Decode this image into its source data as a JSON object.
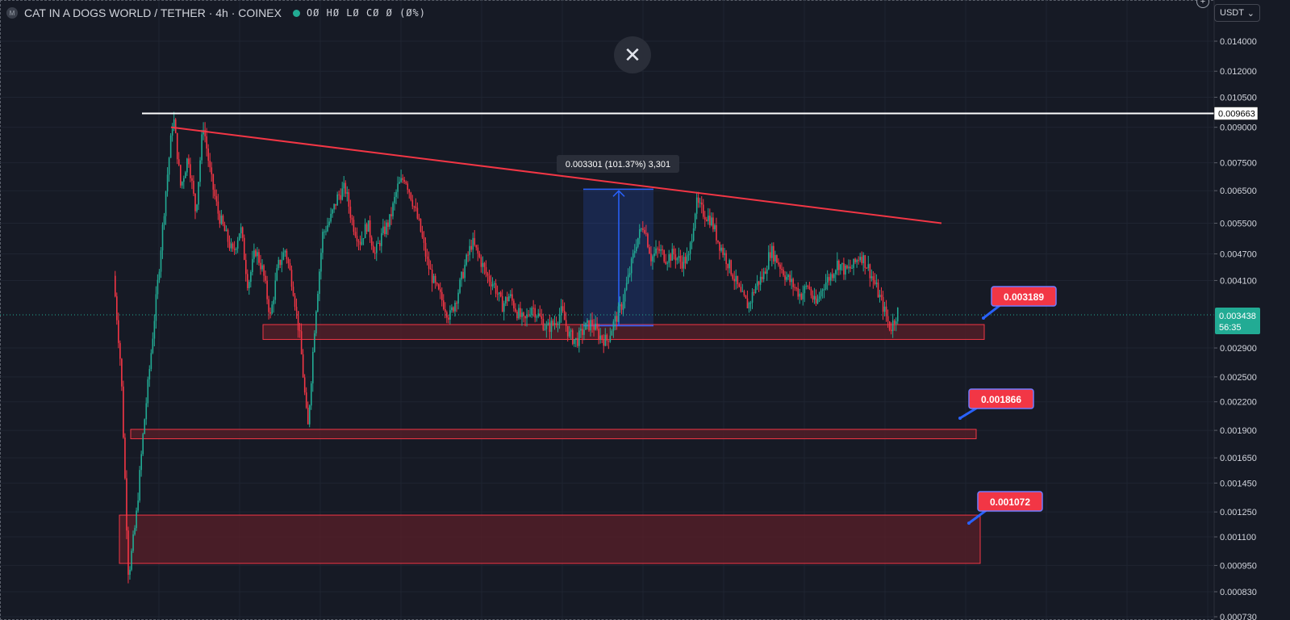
{
  "header": {
    "logo_letter": "M",
    "title": "CAT IN A DOGS WORLD / TETHER · 4h · COINEX",
    "ohlc": "OØ HØ LØ CØ Ø (Ø%)"
  },
  "currency_selector": {
    "label": "USDT",
    "chevron": "⌄"
  },
  "close_button": {
    "icon": "close-icon",
    "glyph": "✕"
  },
  "plus_button": {
    "glyph": "+"
  },
  "colors": {
    "bg": "#161a25",
    "up": "#22ab94",
    "down": "#f23645",
    "trendline": "#f23645",
    "zone_fill": "#5a1f28",
    "measure": "#2962ff",
    "label_bg": "#f23645"
  },
  "chart_data": {
    "type": "candlestick",
    "symbol": "CAT IN A DOGS WORLD / TETHER",
    "interval": "4h",
    "exchange": "COINEX",
    "y_scale": "log",
    "ylim": [
      0.0007,
      0.0155
    ],
    "y_ticks": [
      "0.014000",
      "0.012000",
      "0.010500",
      "0.009000",
      "0.007500",
      "0.006500",
      "0.005500",
      "0.004700",
      "0.004100",
      "0.003438",
      "0.002900",
      "0.002500",
      "0.002200",
      "0.001900",
      "0.001650",
      "0.001450",
      "0.001250",
      "0.001100",
      "0.000950",
      "0.000830",
      "0.000730"
    ],
    "current_price": {
      "value": "0.003438",
      "countdown": "56:35"
    },
    "horizontal_line": {
      "value": "0.009663"
    },
    "price_path": [
      0.0042,
      0.0026,
      0.0009,
      0.0012,
      0.0019,
      0.0028,
      0.0042,
      0.0065,
      0.0096,
      0.0066,
      0.0078,
      0.0058,
      0.0092,
      0.007,
      0.0058,
      0.0052,
      0.0047,
      0.0054,
      0.004,
      0.0048,
      0.0043,
      0.0034,
      0.0044,
      0.0048,
      0.004,
      0.003,
      0.0019,
      0.0034,
      0.0052,
      0.0056,
      0.0063,
      0.0066,
      0.0055,
      0.005,
      0.0055,
      0.0047,
      0.0052,
      0.0056,
      0.0066,
      0.007,
      0.0062,
      0.0054,
      0.0045,
      0.004,
      0.0037,
      0.0034,
      0.0038,
      0.0044,
      0.005,
      0.0046,
      0.0042,
      0.004,
      0.0036,
      0.0038,
      0.0035,
      0.0033,
      0.0036,
      0.0034,
      0.0032,
      0.0033,
      0.0035,
      0.0031,
      0.003,
      0.0032,
      0.0033,
      0.0031,
      0.003,
      0.0033,
      0.0036,
      0.0042,
      0.005,
      0.0055,
      0.0046,
      0.0048,
      0.0046,
      0.0047,
      0.0045,
      0.0046,
      0.0061,
      0.0058,
      0.0056,
      0.005,
      0.0046,
      0.0042,
      0.0038,
      0.0036,
      0.004,
      0.0042,
      0.0048,
      0.0045,
      0.0042,
      0.004,
      0.0038,
      0.004,
      0.0036,
      0.004,
      0.0042,
      0.0045,
      0.0043,
      0.0044,
      0.0047,
      0.0044,
      0.004,
      0.0036,
      0.0032,
      0.0035
    ],
    "trendline": {
      "from_price": 0.009,
      "to_price": 0.0055
    },
    "zones": [
      {
        "top": 0.00327,
        "bottom": 0.00303,
        "label": "0.003189"
      },
      {
        "top": 0.00191,
        "bottom": 0.00182,
        "label": "0.001866"
      },
      {
        "top": 0.00123,
        "bottom": 0.00096,
        "label": "0.001072"
      }
    ],
    "measure": {
      "from_price": 0.00325,
      "to_price": 0.00655,
      "label": "0.003301 (101.37%) 3,301"
    }
  }
}
